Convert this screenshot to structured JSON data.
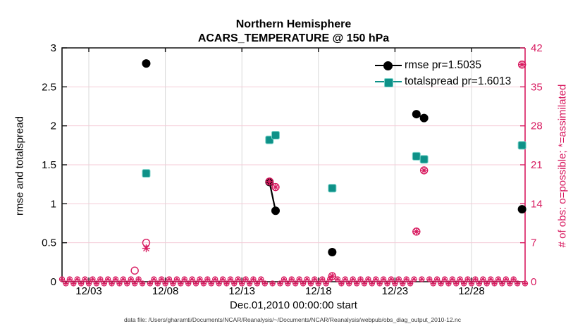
{
  "title": {
    "line1": "Northern Hemisphere",
    "line2": "ACARS_TEMPERATURE @ 150 hPa"
  },
  "axes": {
    "xlabel": "Dec.01,2010 00:00:00 start",
    "ylabel_left": "rmse and totalspread",
    "ylabel_right": "# of obs: o=possible; *=assimilated"
  },
  "legend": {
    "items": [
      {
        "label": "rmse pr=1.5035",
        "marker": "filled-circle",
        "color": "#000000"
      },
      {
        "label": "totalspread pr=1.6013",
        "marker": "filled-square",
        "color": "#0e9188"
      }
    ]
  },
  "footer": "data file: /Users/gharamti/Documents/NCAR/Reanalysis/~/Documents/NCAR/Reanalysis/webpub/obs_diag_output_2010-12.nc",
  "colors": {
    "rmse": "#000000",
    "spread_fill": "#0e9188",
    "spread_edge": "#79d2c9",
    "obs": "#d81b60",
    "grid_horizontal": "#f4cbd7",
    "grid_vertical": "#d9d9d9",
    "axis_frame": "#111111"
  },
  "chart_data": {
    "type": "scatter",
    "title": [
      "Northern Hemisphere",
      "ACARS_TEMPERATURE @ 150 hPa"
    ],
    "xlabel": "Dec.01,2010 00:00:00 start",
    "ylabel_left": "rmse and totalspread",
    "ylabel_right": "# of obs: o=possible; *=assimilated",
    "x_is_days_since": "Dec 01 2010 00:00",
    "xlim_days": [
      0.25,
      30.5
    ],
    "x_ticks": [
      {
        "day": 2,
        "label": "12/03"
      },
      {
        "day": 7,
        "label": "12/08"
      },
      {
        "day": 12,
        "label": "12/13"
      },
      {
        "day": 17,
        "label": "12/18"
      },
      {
        "day": 22,
        "label": "12/23"
      },
      {
        "day": 27,
        "label": "12/28"
      }
    ],
    "ylim_left": [
      0,
      3
    ],
    "yticks_left": [
      0,
      0.5,
      1,
      1.5,
      2,
      2.5,
      3
    ],
    "ylim_right": [
      0,
      42
    ],
    "yticks_right": [
      0,
      7,
      14,
      21,
      28,
      35,
      42
    ],
    "grid": true,
    "legend_position": "upper-right-inside",
    "series": [
      {
        "name": "rmse pr=1.5035",
        "axis": "left",
        "marker": "filled-circle",
        "points": [
          {
            "day": 5.75,
            "v": 2.8
          },
          {
            "day": 13.8,
            "v": 1.28
          },
          {
            "day": 14.2,
            "v": 0.91
          },
          {
            "day": 17.9,
            "v": 0.38
          },
          {
            "day": 23.4,
            "v": 2.15
          },
          {
            "day": 23.9,
            "v": 2.1
          },
          {
            "day": 30.3,
            "v": 0.93
          }
        ],
        "connected_segments": [
          [
            1,
            2
          ],
          [
            4,
            5
          ]
        ]
      },
      {
        "name": "totalspread pr=1.6013",
        "axis": "left",
        "marker": "filled-square",
        "points": [
          {
            "day": 5.75,
            "v": 1.39
          },
          {
            "day": 13.8,
            "v": 1.82
          },
          {
            "day": 14.2,
            "v": 1.88
          },
          {
            "day": 17.9,
            "v": 1.2
          },
          {
            "day": 23.4,
            "v": 1.61
          },
          {
            "day": 23.9,
            "v": 1.57
          },
          {
            "day": 30.3,
            "v": 1.75
          }
        ],
        "connected_segments": [
          [
            1,
            2
          ],
          [
            4,
            5
          ]
        ]
      },
      {
        "name": "possible",
        "axis": "right",
        "marker": "open-circle",
        "points": [
          {
            "day": 5.0,
            "v": 2
          },
          {
            "day": 5.75,
            "v": 7
          },
          {
            "day": 13.8,
            "v": 18
          },
          {
            "day": 14.2,
            "v": 17
          },
          {
            "day": 17.9,
            "v": 1
          },
          {
            "day": 23.4,
            "v": 9
          },
          {
            "day": 23.9,
            "v": 20
          },
          {
            "day": 30.3,
            "v": 39
          }
        ]
      },
      {
        "name": "assimilated",
        "axis": "right",
        "marker": "asterisk",
        "points": [
          {
            "day": 5.75,
            "v": 6
          },
          {
            "day": 13.8,
            "v": 18
          },
          {
            "day": 14.2,
            "v": 17
          },
          {
            "day": 17.9,
            "v": 1
          },
          {
            "day": 23.4,
            "v": 9
          },
          {
            "day": 23.9,
            "v": 20
          },
          {
            "day": 30.3,
            "v": 39
          }
        ]
      }
    ],
    "zero_obs_band": {
      "description": "dense row of overlapping o and * markers at value 0 for every 6-hour bin with no data",
      "start_day": 0.25,
      "end_day": 30.5,
      "step_days": 0.25,
      "value": 0,
      "exclude_days": [
        5.75,
        13.8,
        14.2,
        17.9,
        23.4,
        23.9,
        30.3
      ]
    }
  }
}
